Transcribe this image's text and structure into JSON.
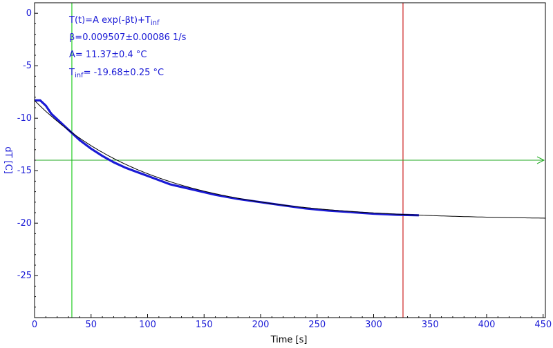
{
  "chart_data": {
    "type": "line",
    "xlabel": "Time [s]",
    "ylabel": "dT [C]",
    "xlim": [
      0,
      452
    ],
    "ylim": [
      -29,
      1
    ],
    "x_ticks": [
      0,
      50,
      100,
      150,
      200,
      250,
      300,
      350,
      400,
      450
    ],
    "x_tick_labels": [
      "0",
      "50",
      "100",
      "150",
      "200",
      "250",
      "300",
      "350",
      "400",
      "450"
    ],
    "y_ticks": [
      0,
      -5,
      -10,
      -15,
      -20,
      -25
    ],
    "y_tick_labels": [
      "0",
      "-5",
      "-10",
      "-15",
      "-20",
      "-25"
    ],
    "grid": false,
    "colors": {
      "axis_text": "#1a1ad6",
      "data": "#1a1ad6",
      "fit": "#000000",
      "cursor_green": "#22cc22",
      "cursor_red": "#cc2222",
      "hline": "#22aa22"
    },
    "fit_model": {
      "A": 11.37,
      "beta": 0.009507,
      "T_inf": -19.68
    },
    "fit_text": {
      "formula_main": "T(t)=A exp(-βt)+T",
      "formula_sub": "inf",
      "beta": "β=0.009507±0.00086 1/s",
      "A": "A= 11.37±0.4 °C",
      "tinf_prefix": "T",
      "tinf_sub": "inf",
      "tinf_rest": "= -19.68±0.25 °C"
    },
    "series": [
      {
        "role": "measured",
        "x": [
          0,
          5,
          10,
          15,
          20,
          30,
          40,
          50,
          60,
          70,
          80,
          90,
          100,
          120,
          140,
          160,
          180,
          200,
          220,
          240,
          260,
          280,
          300,
          320,
          340
        ],
        "y": [
          -8.3,
          -8.3,
          -8.8,
          -9.6,
          -10.1,
          -11.1,
          -12.1,
          -12.9,
          -13.6,
          -14.2,
          -14.7,
          -15.1,
          -15.5,
          -16.3,
          -16.8,
          -17.3,
          -17.7,
          -18.0,
          -18.3,
          -18.6,
          -18.8,
          -18.95,
          -19.1,
          -19.2,
          -19.25
        ]
      },
      {
        "role": "fit",
        "x_range": [
          0,
          452
        ]
      }
    ],
    "markers": {
      "vertical_green_x": 33,
      "vertical_red_x": 326,
      "horizontal_y": -14.0
    }
  }
}
